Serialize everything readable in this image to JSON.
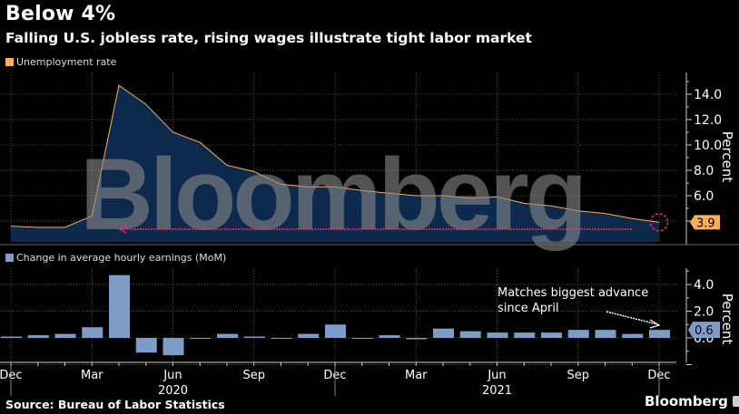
{
  "header": {
    "title": "Below 4%",
    "subtitle": "Falling U.S. jobless rate, rising wages illustrate tight labor market"
  },
  "colors": {
    "unemployment_line": "#f7b15b",
    "unemployment_fill": "#0d2a4d",
    "earnings_bar": "#7f9cc7",
    "highlight_circle": "#e8315b",
    "reference_line": "#e8315b",
    "watermark": "#8a8a8a"
  },
  "watermark": "Bloomberg",
  "footer": {
    "source": "Source: Bureau of Labor Statistics",
    "brand": "Bloomberg"
  },
  "chart_data": [
    {
      "type": "area",
      "title": "Unemployment rate",
      "legend": [
        "Unemployment rate"
      ],
      "ylabel": "Percent",
      "ylim": [
        2.0,
        15.0
      ],
      "yticks": [
        "6.0",
        "8.0",
        "10.0",
        "12.0",
        "14.0"
      ],
      "end_label": "3.9",
      "x": [
        "Dec 2019",
        "Jan 2020",
        "Feb 2020",
        "Mar 2020",
        "Apr 2020",
        "May 2020",
        "Jun 2020",
        "Jul 2020",
        "Aug 2020",
        "Sep 2020",
        "Oct 2020",
        "Nov 2020",
        "Dec 2020",
        "Jan 2021",
        "Feb 2021",
        "Mar 2021",
        "Apr 2021",
        "May 2021",
        "Jun 2021",
        "Jul 2021",
        "Aug 2021",
        "Sep 2021",
        "Oct 2021",
        "Nov 2021",
        "Dec 2021"
      ],
      "values": [
        3.6,
        3.5,
        3.5,
        4.4,
        14.7,
        13.2,
        11.0,
        10.2,
        8.4,
        7.9,
        6.9,
        6.7,
        6.7,
        6.4,
        6.2,
        6.0,
        6.0,
        5.8,
        5.9,
        5.4,
        5.2,
        4.8,
        4.6,
        4.2,
        3.9
      ],
      "annotations": [
        "Dotted reference line at 3.9 back to Apr 2020 level",
        "Circle highlight on Dec 2021 value"
      ]
    },
    {
      "type": "bar",
      "title": "Change in average hourly earnings (MoM)",
      "legend": [
        "Change in average hourly earnings (MoM)"
      ],
      "ylabel": "Percent",
      "ylim": [
        -2.0,
        5.0
      ],
      "yticks": [
        "0.0",
        "2.0",
        "4.0"
      ],
      "end_label": "0.6",
      "x": [
        "Dec 2019",
        "Jan 2020",
        "Feb 2020",
        "Mar 2020",
        "Apr 2020",
        "May 2020",
        "Jun 2020",
        "Jul 2020",
        "Aug 2020",
        "Sep 2020",
        "Oct 2020",
        "Nov 2020",
        "Dec 2020",
        "Jan 2021",
        "Feb 2021",
        "Mar 2021",
        "Apr 2021",
        "May 2021",
        "Jun 2021",
        "Jul 2021",
        "Aug 2021",
        "Sep 2021",
        "Oct 2021",
        "Nov 2021",
        "Dec 2021"
      ],
      "values": [
        0.1,
        0.2,
        0.3,
        0.8,
        4.7,
        -1.1,
        -1.3,
        0.0,
        0.3,
        0.1,
        0.0,
        0.3,
        1.0,
        0.0,
        0.2,
        -0.1,
        0.7,
        0.5,
        0.4,
        0.4,
        0.4,
        0.6,
        0.6,
        0.3,
        0.6
      ],
      "annotation": "Matches biggest advance since April",
      "annotation_lines": [
        "Matches biggest advance",
        "since April"
      ]
    }
  ],
  "xaxis": {
    "tick_labels": [
      "Dec",
      "Mar",
      "Jun",
      "Sep",
      "Dec",
      "Mar",
      "Jun",
      "Sep",
      "Dec"
    ],
    "year_labels": [
      "2020",
      "2021"
    ]
  }
}
